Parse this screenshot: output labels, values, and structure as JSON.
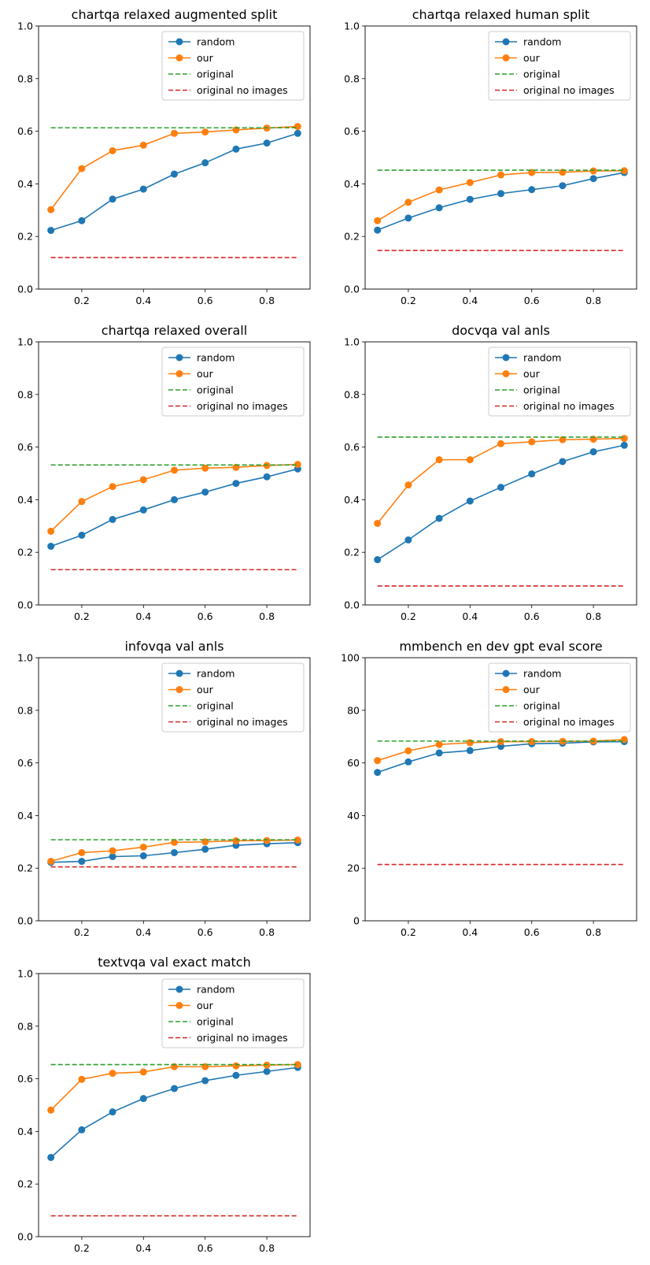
{
  "chart_data": [
    {
      "type": "line",
      "title": "chartqa relaxed augmented split",
      "xlabel": "",
      "ylabel": "",
      "x": [
        0.1,
        0.2,
        0.3,
        0.4,
        0.5,
        0.6,
        0.7,
        0.8,
        0.9
      ],
      "xlim": [
        0.06,
        0.94
      ],
      "ylim": [
        0,
        1
      ],
      "xticks": [
        0.2,
        0.4,
        0.6,
        0.8
      ],
      "xtick_labels": [
        "0.2",
        "0.4",
        "0.6",
        "0.8"
      ],
      "yticks": [
        0,
        0.2,
        0.4,
        0.6,
        0.8,
        1.0
      ],
      "ytick_labels": [
        "0.0",
        "0.2",
        "0.4",
        "0.6",
        "0.8",
        "1.0"
      ],
      "legend_position": "top-right",
      "series": [
        {
          "name": "random",
          "color": "#1f77b4",
          "style": "marker-line",
          "values": [
            0.223,
            0.26,
            0.342,
            0.38,
            0.437,
            0.48,
            0.532,
            0.555,
            0.592
          ]
        },
        {
          "name": "our",
          "color": "#ff7f0e",
          "style": "marker-line",
          "values": [
            0.302,
            0.458,
            0.526,
            0.547,
            0.592,
            0.597,
            0.605,
            0.612,
            0.618
          ]
        },
        {
          "name": "original",
          "color": "#2ca02c",
          "style": "dashed",
          "values": [
            0.613,
            0.613,
            0.613,
            0.613,
            0.613,
            0.613,
            0.613,
            0.613,
            0.613
          ]
        },
        {
          "name": "original no images",
          "color": "#d62728",
          "style": "dashed",
          "values": [
            0.12,
            0.12,
            0.12,
            0.12,
            0.12,
            0.12,
            0.12,
            0.12,
            0.12
          ]
        }
      ]
    },
    {
      "type": "line",
      "title": "chartqa relaxed human split",
      "xlabel": "",
      "ylabel": "",
      "x": [
        0.1,
        0.2,
        0.3,
        0.4,
        0.5,
        0.6,
        0.7,
        0.8,
        0.9
      ],
      "xlim": [
        0.06,
        0.94
      ],
      "ylim": [
        0,
        1
      ],
      "xticks": [
        0.2,
        0.4,
        0.6,
        0.8
      ],
      "xtick_labels": [
        "0.2",
        "0.4",
        "0.6",
        "0.8"
      ],
      "yticks": [
        0,
        0.2,
        0.4,
        0.6,
        0.8,
        1.0
      ],
      "ytick_labels": [
        "0.0",
        "0.2",
        "0.4",
        "0.6",
        "0.8",
        "1.0"
      ],
      "legend_position": "top-right",
      "series": [
        {
          "name": "random",
          "color": "#1f77b4",
          "style": "marker-line",
          "values": [
            0.224,
            0.27,
            0.309,
            0.341,
            0.363,
            0.378,
            0.393,
            0.42,
            0.443
          ]
        },
        {
          "name": "our",
          "color": "#ff7f0e",
          "style": "marker-line",
          "values": [
            0.26,
            0.33,
            0.377,
            0.405,
            0.434,
            0.443,
            0.444,
            0.449,
            0.45
          ]
        },
        {
          "name": "original",
          "color": "#2ca02c",
          "style": "dashed",
          "values": [
            0.452,
            0.452,
            0.452,
            0.452,
            0.452,
            0.452,
            0.452,
            0.452,
            0.452
          ]
        },
        {
          "name": "original no images",
          "color": "#d62728",
          "style": "dashed",
          "values": [
            0.147,
            0.147,
            0.147,
            0.147,
            0.147,
            0.147,
            0.147,
            0.147,
            0.147
          ]
        }
      ]
    },
    {
      "type": "line",
      "title": "chartqa relaxed overall",
      "xlabel": "",
      "ylabel": "",
      "x": [
        0.1,
        0.2,
        0.3,
        0.4,
        0.5,
        0.6,
        0.7,
        0.8,
        0.9
      ],
      "xlim": [
        0.06,
        0.94
      ],
      "ylim": [
        0,
        1
      ],
      "xticks": [
        0.2,
        0.4,
        0.6,
        0.8
      ],
      "xtick_labels": [
        "0.2",
        "0.4",
        "0.6",
        "0.8"
      ],
      "yticks": [
        0,
        0.2,
        0.4,
        0.6,
        0.8,
        1.0
      ],
      "ytick_labels": [
        "0.0",
        "0.2",
        "0.4",
        "0.6",
        "0.8",
        "1.0"
      ],
      "legend_position": "top-right",
      "series": [
        {
          "name": "random",
          "color": "#1f77b4",
          "style": "marker-line",
          "values": [
            0.223,
            0.265,
            0.325,
            0.361,
            0.4,
            0.429,
            0.462,
            0.487,
            0.517
          ]
        },
        {
          "name": "our",
          "color": "#ff7f0e",
          "style": "marker-line",
          "values": [
            0.28,
            0.393,
            0.45,
            0.476,
            0.512,
            0.52,
            0.523,
            0.53,
            0.534
          ]
        },
        {
          "name": "original",
          "color": "#2ca02c",
          "style": "dashed",
          "values": [
            0.532,
            0.532,
            0.532,
            0.532,
            0.532,
            0.532,
            0.532,
            0.532,
            0.532
          ]
        },
        {
          "name": "original no images",
          "color": "#d62728",
          "style": "dashed",
          "values": [
            0.134,
            0.134,
            0.134,
            0.134,
            0.134,
            0.134,
            0.134,
            0.134,
            0.134
          ]
        }
      ]
    },
    {
      "type": "line",
      "title": "docvqa val anls",
      "xlabel": "",
      "ylabel": "",
      "x": [
        0.1,
        0.2,
        0.3,
        0.4,
        0.5,
        0.6,
        0.7,
        0.8,
        0.9
      ],
      "xlim": [
        0.06,
        0.94
      ],
      "ylim": [
        0,
        1
      ],
      "xticks": [
        0.2,
        0.4,
        0.6,
        0.8
      ],
      "xtick_labels": [
        "0.2",
        "0.4",
        "0.6",
        "0.8"
      ],
      "yticks": [
        0,
        0.2,
        0.4,
        0.6,
        0.8,
        1.0
      ],
      "ytick_labels": [
        "0.0",
        "0.2",
        "0.4",
        "0.6",
        "0.8",
        "1.0"
      ],
      "legend_position": "top-right",
      "series": [
        {
          "name": "random",
          "color": "#1f77b4",
          "style": "marker-line",
          "values": [
            0.172,
            0.247,
            0.329,
            0.395,
            0.447,
            0.498,
            0.545,
            0.582,
            0.607
          ]
        },
        {
          "name": "our",
          "color": "#ff7f0e",
          "style": "marker-line",
          "values": [
            0.31,
            0.456,
            0.552,
            0.552,
            0.613,
            0.62,
            0.628,
            0.63,
            0.633
          ]
        },
        {
          "name": "original",
          "color": "#2ca02c",
          "style": "dashed",
          "values": [
            0.638,
            0.638,
            0.638,
            0.638,
            0.638,
            0.638,
            0.638,
            0.638,
            0.638
          ]
        },
        {
          "name": "original no images",
          "color": "#d62728",
          "style": "dashed",
          "values": [
            0.072,
            0.072,
            0.072,
            0.072,
            0.072,
            0.072,
            0.072,
            0.072,
            0.072
          ]
        }
      ]
    },
    {
      "type": "line",
      "title": "infovqa val anls",
      "xlabel": "",
      "ylabel": "",
      "x": [
        0.1,
        0.2,
        0.3,
        0.4,
        0.5,
        0.6,
        0.7,
        0.8,
        0.9
      ],
      "xlim": [
        0.06,
        0.94
      ],
      "ylim": [
        0,
        1
      ],
      "xticks": [
        0.2,
        0.4,
        0.6,
        0.8
      ],
      "xtick_labels": [
        "0.2",
        "0.4",
        "0.6",
        "0.8"
      ],
      "yticks": [
        0,
        0.2,
        0.4,
        0.6,
        0.8,
        1.0
      ],
      "ytick_labels": [
        "0.0",
        "0.2",
        "0.4",
        "0.6",
        "0.8",
        "1.0"
      ],
      "legend_position": "top-right",
      "series": [
        {
          "name": "random",
          "color": "#1f77b4",
          "style": "marker-line",
          "values": [
            0.222,
            0.226,
            0.244,
            0.247,
            0.259,
            0.272,
            0.287,
            0.293,
            0.297
          ]
        },
        {
          "name": "our",
          "color": "#ff7f0e",
          "style": "marker-line",
          "values": [
            0.226,
            0.259,
            0.266,
            0.28,
            0.298,
            0.3,
            0.304,
            0.305,
            0.307
          ]
        },
        {
          "name": "original",
          "color": "#2ca02c",
          "style": "dashed",
          "values": [
            0.308,
            0.308,
            0.308,
            0.308,
            0.308,
            0.308,
            0.308,
            0.308,
            0.308
          ]
        },
        {
          "name": "original no images",
          "color": "#d62728",
          "style": "dashed",
          "values": [
            0.205,
            0.205,
            0.205,
            0.205,
            0.205,
            0.205,
            0.205,
            0.205,
            0.205
          ]
        }
      ]
    },
    {
      "type": "line",
      "title": "mmbench en dev gpt eval score",
      "xlabel": "",
      "ylabel": "",
      "x": [
        0.1,
        0.2,
        0.3,
        0.4,
        0.5,
        0.6,
        0.7,
        0.8,
        0.9
      ],
      "xlim": [
        0.06,
        0.94
      ],
      "ylim": [
        0,
        100
      ],
      "xticks": [
        0.2,
        0.4,
        0.6,
        0.8
      ],
      "xtick_labels": [
        "0.2",
        "0.4",
        "0.6",
        "0.8"
      ],
      "yticks": [
        0,
        20,
        40,
        60,
        80,
        100
      ],
      "ytick_labels": [
        "0",
        "20",
        "40",
        "60",
        "80",
        "100"
      ],
      "legend_position": "top-right",
      "series": [
        {
          "name": "random",
          "color": "#1f77b4",
          "style": "marker-line",
          "values": [
            56.4,
            60.4,
            63.8,
            64.7,
            66.3,
            67.3,
            67.5,
            68.0,
            68.1
          ]
        },
        {
          "name": "our",
          "color": "#ff7f0e",
          "style": "marker-line",
          "values": [
            60.9,
            64.6,
            67.0,
            67.7,
            68.1,
            68.1,
            68.2,
            68.3,
            68.9
          ]
        },
        {
          "name": "original",
          "color": "#2ca02c",
          "style": "dashed",
          "values": [
            68.3,
            68.3,
            68.3,
            68.3,
            68.3,
            68.3,
            68.3,
            68.3,
            68.3
          ]
        },
        {
          "name": "original no images",
          "color": "#d62728",
          "style": "dashed",
          "values": [
            21.4,
            21.4,
            21.4,
            21.4,
            21.4,
            21.4,
            21.4,
            21.4,
            21.4
          ]
        }
      ]
    },
    {
      "type": "line",
      "title": "textvqa val exact match",
      "xlabel": "",
      "ylabel": "",
      "x": [
        0.1,
        0.2,
        0.3,
        0.4,
        0.5,
        0.6,
        0.7,
        0.8,
        0.9
      ],
      "xlim": [
        0.06,
        0.94
      ],
      "ylim": [
        0,
        1
      ],
      "xticks": [
        0.2,
        0.4,
        0.6,
        0.8
      ],
      "xtick_labels": [
        "0.2",
        "0.4",
        "0.6",
        "0.8"
      ],
      "yticks": [
        0,
        0.2,
        0.4,
        0.6,
        0.8,
        1.0
      ],
      "ytick_labels": [
        "0.0",
        "0.2",
        "0.4",
        "0.6",
        "0.8",
        "1.0"
      ],
      "legend_position": "top-right",
      "series": [
        {
          "name": "random",
          "color": "#1f77b4",
          "style": "marker-line",
          "values": [
            0.301,
            0.406,
            0.474,
            0.525,
            0.563,
            0.593,
            0.613,
            0.628,
            0.643
          ]
        },
        {
          "name": "our",
          "color": "#ff7f0e",
          "style": "marker-line",
          "values": [
            0.481,
            0.598,
            0.621,
            0.626,
            0.646,
            0.646,
            0.649,
            0.652,
            0.654
          ]
        },
        {
          "name": "original",
          "color": "#2ca02c",
          "style": "dashed",
          "values": [
            0.654,
            0.654,
            0.654,
            0.654,
            0.654,
            0.654,
            0.654,
            0.654,
            0.654
          ]
        },
        {
          "name": "original no images",
          "color": "#d62728",
          "style": "dashed",
          "values": [
            0.079,
            0.079,
            0.079,
            0.079,
            0.079,
            0.079,
            0.079,
            0.079,
            0.079
          ]
        }
      ]
    }
  ]
}
